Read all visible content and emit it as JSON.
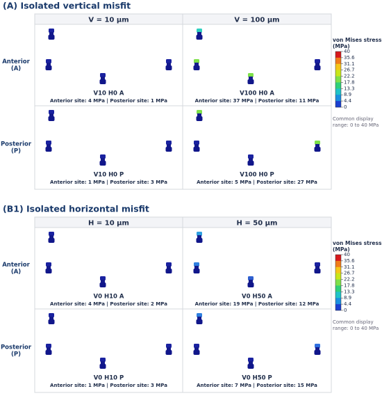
{
  "sections": [
    {
      "title": "(A) Isolated vertical misfit",
      "columns": [
        "V = 10 µm",
        "V = 100 µm"
      ],
      "rows": [
        [
          "Anterior",
          "(A)"
        ],
        [
          "Posterior",
          "(P)"
        ]
      ],
      "panels": [
        {
          "name": "V10 H0 A",
          "detail": "Anterior site: 4 MPa | Posterior site: 1 MPa"
        },
        {
          "name": "V100 H0 A",
          "detail": "Anterior site: 37 MPa | Posterior site: 11 MPa"
        },
        {
          "name": "V10 H0 P",
          "detail": "Anterior site: 1 MPa | Posterior site: 3 MPa"
        },
        {
          "name": "V100 H0 P",
          "detail": "Anterior site: 5 MPa | Posterior site: 27 MPa"
        }
      ],
      "colorbar": {
        "title": [
          "von Mises stress",
          "(MPa)"
        ],
        "ticks": [
          40,
          35.6,
          31.1,
          26.7,
          22.2,
          17.8,
          13.3,
          8.9,
          4.4,
          0
        ],
        "note": [
          "Common display",
          "range: 0 to 40 MPa"
        ]
      }
    },
    {
      "title": "(B1) Isolated horizontal misfit",
      "columns": [
        "H = 10 µm",
        "H = 50 µm"
      ],
      "rows": [
        [
          "Anterior",
          "(A)"
        ],
        [
          "Posterior",
          "(P)"
        ]
      ],
      "panels": [
        {
          "name": "V0 H10 A",
          "detail": "Anterior site: 4 MPa | Posterior site: 2 MPa"
        },
        {
          "name": "V0 H50 A",
          "detail": "Anterior site: 19 MPa | Posterior site: 12 MPa"
        },
        {
          "name": "V0 H10 P",
          "detail": "Anterior site: 1 MPa | Posterior site: 3 MPa"
        },
        {
          "name": "V0 H50 P",
          "detail": "Anterior site: 7 MPa | Posterior site: 15 MPa"
        }
      ],
      "colorbar": {
        "title": [
          "von Mises stress",
          "(MPa)"
        ],
        "ticks": [
          40,
          35.6,
          31.1,
          26.7,
          22.2,
          17.8,
          13.3,
          8.9,
          4.4,
          0
        ],
        "note": [
          "Common display",
          "range: 0 to 40 MPa"
        ]
      }
    }
  ]
}
